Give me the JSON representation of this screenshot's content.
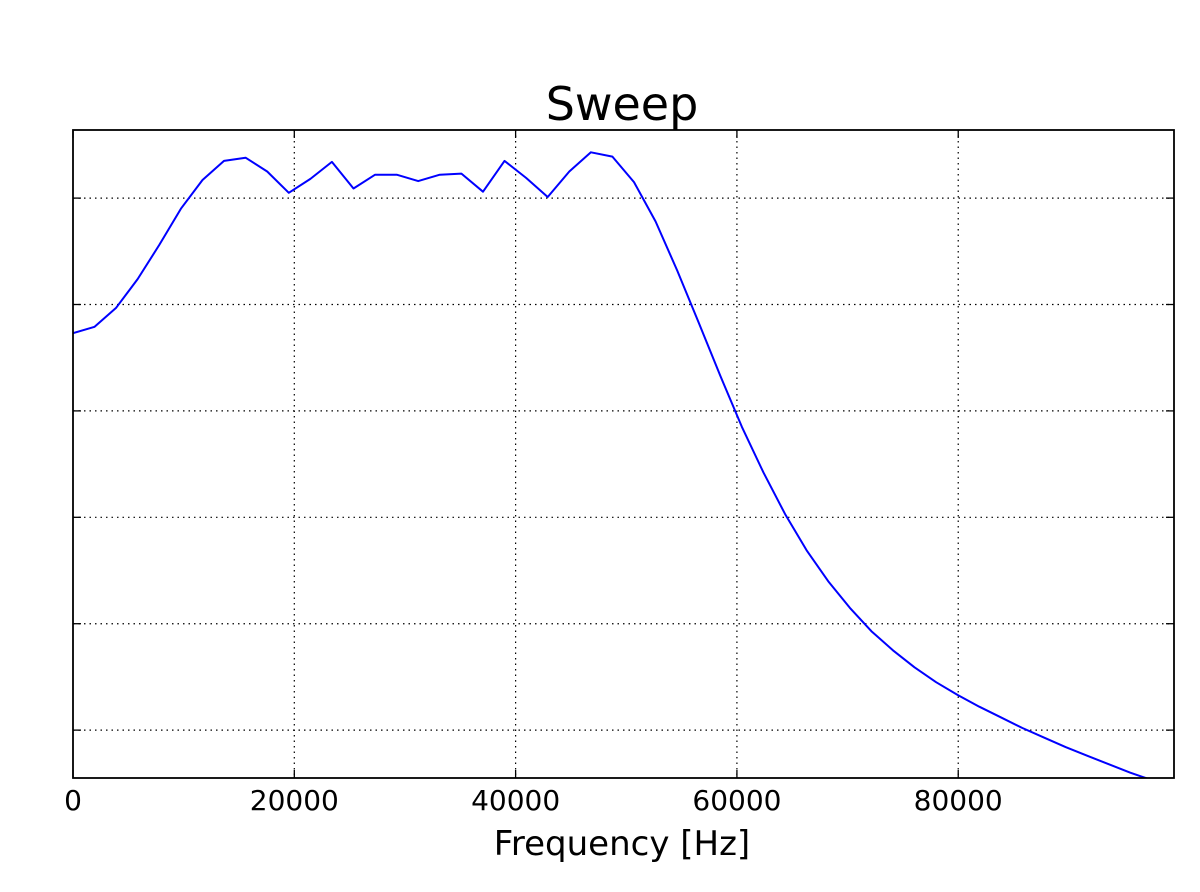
{
  "chart_data": {
    "type": "line",
    "title": "Sweep",
    "xlabel": "Frequency [Hz]",
    "ylabel": "",
    "xlim": [
      0,
      99500
    ],
    "ylim": [
      -6.05,
      0.04
    ],
    "grid": true,
    "x_ticks": [
      0,
      20000,
      40000,
      60000,
      80000
    ],
    "x_tick_labels": [
      "0",
      "20000",
      "40000",
      "60000",
      "80000"
    ],
    "y_gridlines": [
      -5.6,
      -4.6,
      -3.6,
      -2.6,
      -1.6,
      -0.6
    ],
    "y_tick_labels_shown": false,
    "colors": {
      "series": "#0000ff"
    },
    "series": [
      {
        "name": "Sweep",
        "x": [
          0,
          1950,
          3900,
          5850,
          7800,
          9750,
          11700,
          13650,
          15600,
          17550,
          19500,
          21450,
          23400,
          25350,
          27300,
          29250,
          31200,
          33150,
          35100,
          37050,
          39000,
          40950,
          42900,
          44850,
          46800,
          48750,
          50700,
          52650,
          54600,
          56550,
          58500,
          60450,
          62400,
          64350,
          66300,
          68250,
          70200,
          72150,
          74100,
          76050,
          78000,
          79950,
          81900,
          83850,
          85800,
          87750,
          89700,
          91650,
          93600,
          95550,
          97500,
          99450
        ],
        "y": [
          -1.87,
          -1.81,
          -1.63,
          -1.36,
          -1.04,
          -0.7,
          -0.43,
          -0.25,
          -0.22,
          -0.35,
          -0.55,
          -0.42,
          -0.26,
          -0.51,
          -0.38,
          -0.38,
          -0.44,
          -0.38,
          -0.37,
          -0.54,
          -0.25,
          -0.41,
          -0.59,
          -0.35,
          -0.17,
          -0.21,
          -0.45,
          -0.82,
          -1.28,
          -1.77,
          -2.27,
          -2.75,
          -3.18,
          -3.57,
          -3.91,
          -4.2,
          -4.45,
          -4.67,
          -4.85,
          -5.01,
          -5.15,
          -5.27,
          -5.38,
          -5.48,
          -5.58,
          -5.67,
          -5.76,
          -5.84,
          -5.92,
          -6.0,
          -6.07,
          -6.14
        ]
      }
    ]
  }
}
